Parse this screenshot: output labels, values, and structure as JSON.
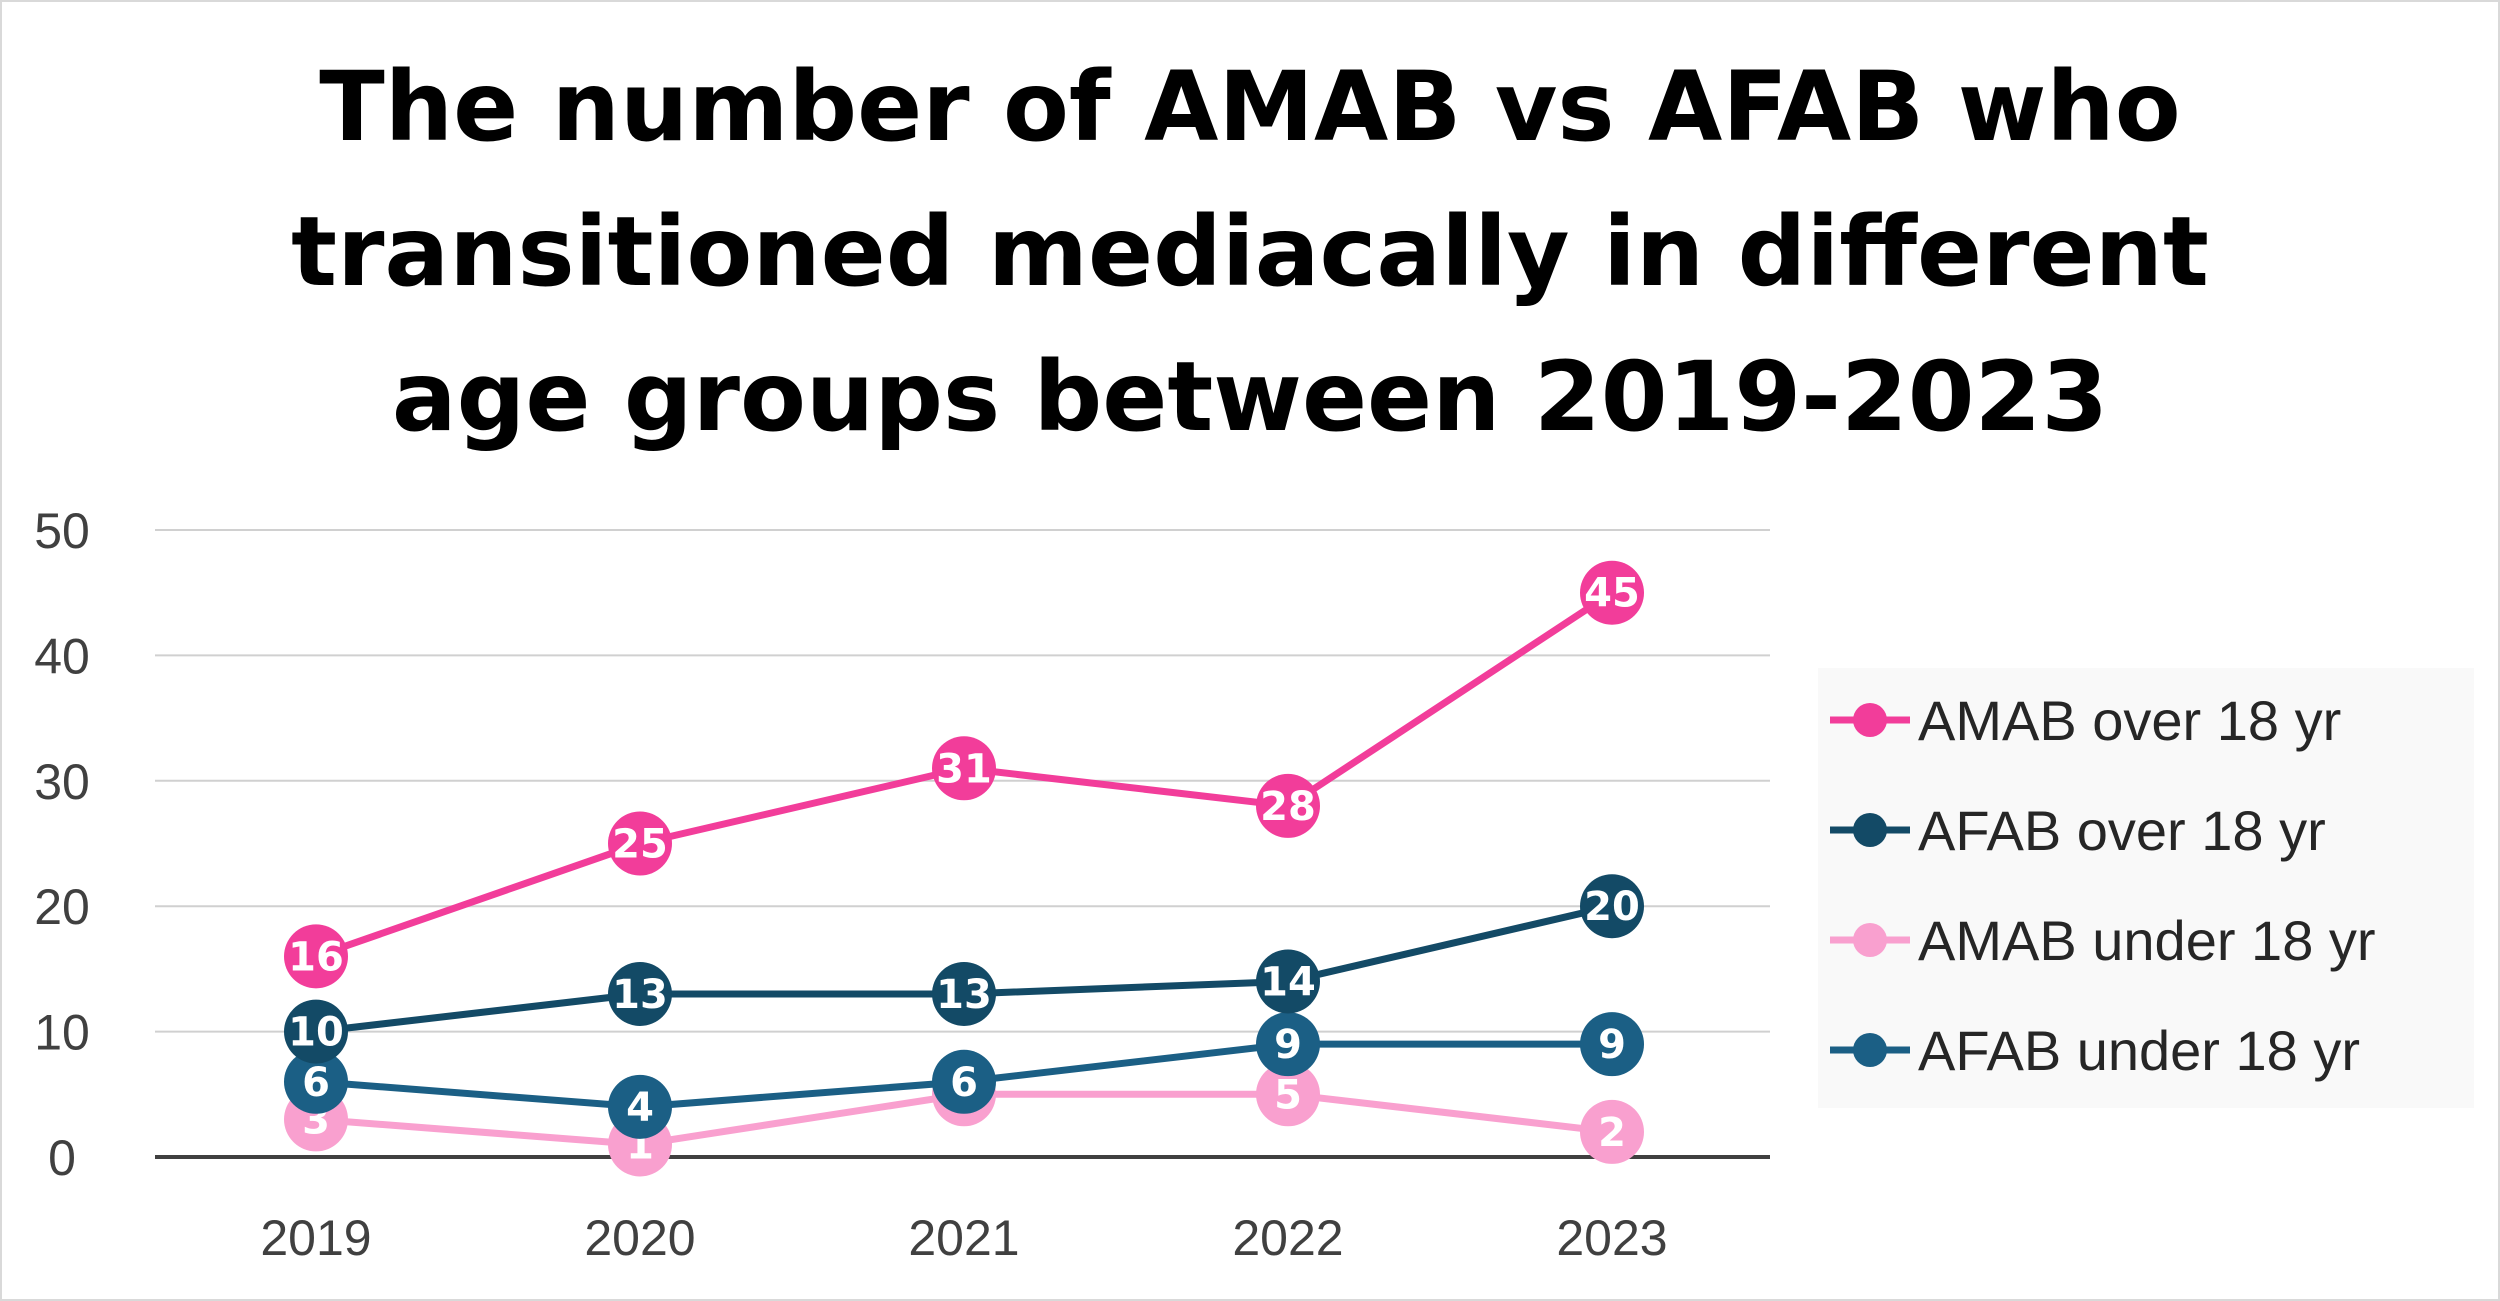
{
  "chart_data": {
    "type": "line",
    "title": "The number of AMAB vs AFAB who transitioned mediacally in different age groups between 2019-2023",
    "title_lines": [
      "The number of AMAB vs AFAB who",
      "transitioned mediacally in different",
      "age groups between 2019-2023"
    ],
    "xlabel": "",
    "ylabel": "",
    "categories": [
      "2019",
      "2020",
      "2021",
      "2022",
      "2023"
    ],
    "y_ticks": [
      "0",
      "10",
      "20",
      "30",
      "40",
      "50"
    ],
    "ylim": [
      0,
      50
    ],
    "grid": true,
    "legend_position": "right",
    "series": [
      {
        "name": "AMAB over 18 yr",
        "color": "#f23d9a",
        "values": [
          16,
          25,
          31,
          28,
          45
        ],
        "labels": [
          "16",
          "25",
          "31",
          "28",
          "45"
        ]
      },
      {
        "name": "AFAB over 18 yr",
        "color": "#134a66",
        "values": [
          10,
          13,
          13,
          14,
          20
        ],
        "labels": [
          "10",
          "13",
          "13",
          "14",
          "20"
        ]
      },
      {
        "name": "AMAB under 18 yr",
        "color": "#f9a0cf",
        "values": [
          3,
          1,
          5,
          5,
          2
        ],
        "labels": [
          "3",
          "1",
          "5",
          "5",
          "2"
        ]
      },
      {
        "name": "AFAB under 18 yr",
        "color": "#1b5f85",
        "values": [
          6,
          4,
          6,
          9,
          9
        ],
        "labels": [
          "6",
          "4",
          "6",
          "9",
          "9"
        ]
      }
    ]
  }
}
